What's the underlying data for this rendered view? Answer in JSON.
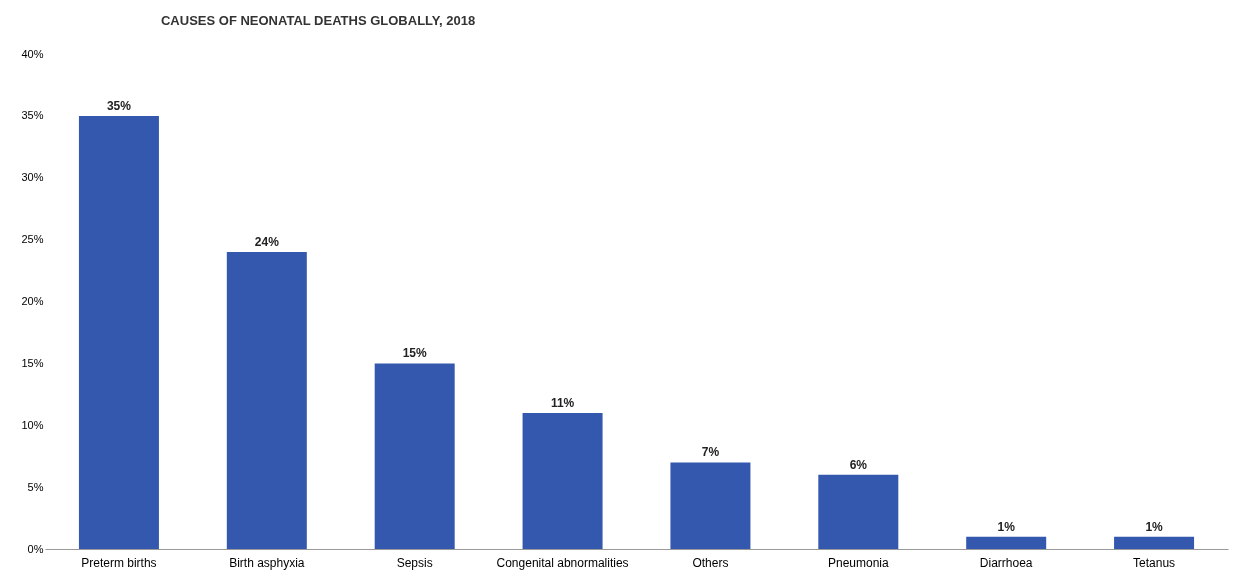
{
  "chart_data": {
    "type": "bar",
    "title": "CAUSES OF NEONATAL DEATHS GLOBALLY, 2018",
    "categories": [
      "Preterm births",
      "Birth asphyxia",
      "Sepsis",
      "Congenital abnormalities",
      "Others",
      "Pneumonia",
      "Diarrhoea",
      "Tetanus"
    ],
    "values": [
      35,
      24,
      15,
      11,
      7,
      6,
      1,
      1
    ],
    "value_labels": [
      "35%",
      "24%",
      "15%",
      "11%",
      "7%",
      "6%",
      "1%",
      "1%"
    ],
    "color": "#3358ad",
    "ylim": [
      0,
      40
    ],
    "yticks": [
      {
        "value": 0,
        "label": "0%"
      },
      {
        "value": 5,
        "label": "5%"
      },
      {
        "value": 10,
        "label": "10%"
      },
      {
        "value": 15,
        "label": "15%"
      },
      {
        "value": 20,
        "label": "20%"
      },
      {
        "value": 25,
        "label": "25%"
      },
      {
        "value": 30,
        "label": "30%"
      },
      {
        "value": 35,
        "label": "35%"
      },
      {
        "value": 40,
        "label": "40%"
      }
    ],
    "grid": false
  }
}
